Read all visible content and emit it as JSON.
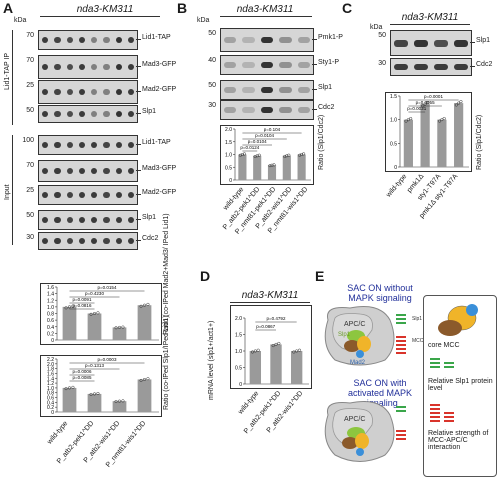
{
  "panels": {
    "A": "A",
    "B": "B",
    "C": "C",
    "D": "D",
    "E": "E"
  },
  "strain": "nda3-KM311",
  "units": {
    "kda": "kDa"
  },
  "panelA": {
    "side_ip": "Lid1-TAP IP",
    "side_input": "Input",
    "ip_labels": [
      "Lid1-TAP",
      "Mad3-GFP",
      "Mad2-GFP",
      "Slp1"
    ],
    "input_labels": [
      "Lid1-TAP",
      "Mad3-GFP",
      "Mad2-GFP",
      "Slp1",
      "Cdc2"
    ],
    "mw_ip": [
      "70",
      "70",
      "25",
      "50"
    ],
    "mw_input": [
      "100",
      "70",
      "25",
      "50",
      "30"
    ],
    "chart1_ylabel": "Ratio (co-IPed Mad2+Mad3/ IPed Lid1)",
    "chart2_ylabel": "Ratio (co-IPed Slp1/IPed Lid1)",
    "categories": [
      "wild-type",
      "P_atb2-pek1^DD",
      "P_atb2-wis1^DD",
      "P_nmt81-wis1^DD"
    ]
  },
  "panelB": {
    "labels": [
      "Pmk1-P",
      "Sty1-P",
      "Slp1",
      "Cdc2"
    ],
    "mw": [
      "50",
      "40",
      "50",
      "30"
    ],
    "ylabel": "Ratio (Slp1/Cdc2)",
    "categories": [
      "wild-type",
      "P_atb2-pek1^DD",
      "P_nmt81-pek1^DD",
      "P_atb2-wis1^DD",
      "P_nmt81-wis1^DD"
    ]
  },
  "panelC": {
    "labels": [
      "Slp1",
      "Cdc2"
    ],
    "mw": [
      "50",
      "30"
    ],
    "ylabel": "Ratio (Slp1/Cdc2)",
    "categories": [
      "wild-type",
      "pmk1Δ",
      "sty1-T97A",
      "pmk1Δ sty1-T97A"
    ]
  },
  "panelD": {
    "ylabel": "mRNA level (slp1+/act1+)",
    "categories": [
      "wild-type",
      "P_atb2-pek1^DD",
      "P_atb2-wis1^DD"
    ]
  },
  "panelE": {
    "title1": "SAC ON without MAPK signaling",
    "title2": "SAC ON with activated MAPK signaling",
    "apcc": "APC/C",
    "slp1": "Slp1",
    "mad3": "Mad3",
    "mad2": "Mad2",
    "bar_top_label": "Slp1 level",
    "bar_bottom_label": "MCC-APC/C interaction",
    "legend_core": "core MCC",
    "legend_slp1": "Relative Slp1 protein level",
    "legend_strength": "Relative strength of MCC-APC/C interaction"
  },
  "chart_data": [
    {
      "type": "bar",
      "title": "",
      "ylabel": "Ratio (co-IPed Mad2+Mad3/ IPed Lid1)",
      "categories": [
        "wild-type",
        "P_atb2-pek1^DD",
        "P_atb2-wis1^DD",
        "P_nmt81-wis1^DD"
      ],
      "values": [
        1.0,
        0.8,
        0.38,
        1.05
      ],
      "ylim": [
        0,
        1.6
      ],
      "yticks": [
        "0",
        "0.2",
        "0.4",
        "0.6",
        "0.8",
        "1.0",
        "1.2",
        "1.4",
        "1.6"
      ],
      "pvalues": [
        "p=0.0154",
        "p=0.4230",
        "p=0.0091",
        "p=0.0816"
      ]
    },
    {
      "type": "bar",
      "title": "",
      "ylabel": "Ratio (co-IPed Slp1/IPed Lid1)",
      "categories": [
        "wild-type",
        "P_atb2-pek1^DD",
        "P_atb2-wis1^DD",
        "P_nmt81-wis1^DD"
      ],
      "values": [
        1.0,
        0.75,
        0.45,
        1.35
      ],
      "extra": [
        2.0
      ],
      "ylim": [
        0,
        2.2
      ],
      "yticks": [
        "0",
        "0.2",
        "0.4",
        "0.6",
        "0.8",
        "1.0",
        "1.2",
        "1.4",
        "1.6",
        "1.8",
        "2.0",
        "2.2"
      ],
      "pvalues": [
        "p=0.0003",
        "p=0.1313",
        "p=0.0006",
        "p=0.0085"
      ]
    },
    {
      "type": "bar",
      "title": "",
      "ylabel": "Ratio (Slp1/Cdc2)",
      "categories": [
        "wild-type",
        "P_atb2-pek1^DD",
        "P_nmt81-pek1^DD",
        "P_atb2-wis1^DD",
        "P_nmt81-wis1^DD"
      ],
      "values": [
        1.0,
        0.95,
        0.58,
        0.95,
        1.0
      ],
      "ylim": [
        0,
        2.0
      ],
      "yticks": [
        "0",
        "0.5",
        "1.0",
        "1.5",
        "2.0"
      ],
      "pvalues": [
        "p=0.104",
        "p=0.0104",
        "p=0.0104",
        "p=0.0124"
      ]
    },
    {
      "type": "bar",
      "title": "",
      "ylabel": "Ratio (Slp1/Cdc2)",
      "categories": [
        "wild-type",
        "pmk1Δ",
        "sty1-T97A",
        "pmk1Δ sty1-T97A"
      ],
      "values": [
        1.0,
        1.33,
        1.0,
        1.35
      ],
      "ylim": [
        0,
        1.5
      ],
      "yticks": [
        "0",
        "0.5",
        "1.0",
        "1.5"
      ],
      "pvalues": [
        "p=0.0001",
        "p=0.0055",
        "p=0.0031"
      ]
    },
    {
      "type": "bar",
      "title": "",
      "ylabel": "mRNA level (slp1+/act1+)",
      "categories": [
        "wild-type",
        "P_atb2-pek1^DD",
        "P_atb2-wis1^DD"
      ],
      "values": [
        1.0,
        1.2,
        1.0
      ],
      "ylim": [
        0,
        2.0
      ],
      "yticks": [
        "0",
        "0.5",
        "1.0",
        "1.5",
        "2.0"
      ],
      "pvalues": [
        "p=0.4792",
        "p=0.0867"
      ]
    }
  ]
}
